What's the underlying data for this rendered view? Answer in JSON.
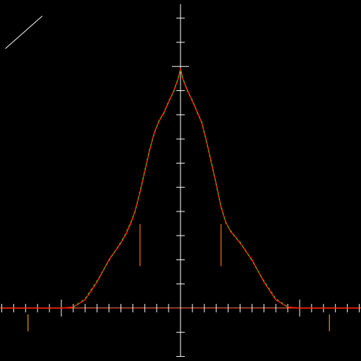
{
  "chart_data": {
    "type": "line",
    "title": "",
    "xlabel": "",
    "ylabel": "",
    "grid": false,
    "xlim": [
      -15,
      15
    ],
    "ylim": [
      -4,
      25
    ],
    "background": "#000000",
    "colors": {
      "axis": "#ffffff",
      "baseline": "#cc2200",
      "main_curve": "#ff1a00",
      "overlay_curve": "#22cc00",
      "marker": "#dd6600",
      "marker_alt": "#cc8800"
    },
    "series": [
      {
        "x": [
          -15,
          -10,
          -9,
          -8,
          -7,
          -6,
          -5,
          -4.6,
          -4.2,
          -3.8,
          -3.4,
          -3,
          -2.6,
          -2.2,
          -1.8,
          -1.4,
          -1,
          -0.6,
          -0.2,
          0,
          0.2,
          0.6,
          1,
          1.4,
          1.8,
          2.2,
          2.6,
          3,
          3.4,
          3.8,
          4.2,
          4.6,
          5,
          6,
          7,
          8,
          9,
          10,
          15
        ],
        "y": [
          0,
          0,
          0.1,
          0.8,
          2.5,
          4.6,
          6.2,
          7.0,
          8.0,
          9.3,
          11.0,
          13.0,
          15.0,
          16.7,
          17.8,
          18.6,
          19.6,
          20.6,
          21.8,
          22.8,
          21.8,
          20.7,
          19.7,
          18.7,
          17.6,
          15.8,
          13.8,
          11.8,
          9.6,
          8.2,
          7.3,
          6.8,
          6.2,
          4.6,
          2.5,
          0.8,
          0.1,
          0,
          0
        ]
      },
      {
        "x": [
          -9,
          -8,
          -7,
          -6,
          -5,
          -4.6,
          -4.2,
          -3.8,
          -3.4,
          -3,
          -2.6,
          -2.2,
          -1.8,
          -1.4,
          -1,
          -0.6,
          -0.2,
          0,
          0.2,
          0.6,
          1,
          1.4,
          1.8,
          2.2,
          2.6,
          3,
          3.4,
          3.8,
          4.2,
          4.6,
          5,
          6,
          7,
          8,
          9
        ],
        "y": [
          0.1,
          0.9,
          2.6,
          4.5,
          6.3,
          7.1,
          8.1,
          9.2,
          11.1,
          13.1,
          15.1,
          16.6,
          17.9,
          18.5,
          19.7,
          20.5,
          21.9,
          22.7,
          21.9,
          20.6,
          19.8,
          18.6,
          17.7,
          15.7,
          13.9,
          11.7,
          9.7,
          8.1,
          7.4,
          6.7,
          6.3,
          4.5,
          2.6,
          0.9,
          0.1
        ]
      }
    ],
    "markers": [
      {
        "x": -3.4,
        "y_from": 4,
        "y_to": 8
      },
      {
        "x": 3.4,
        "y_from": 4,
        "y_to": 8
      },
      {
        "x": -12.8,
        "y_from": -2.2,
        "y_to": -0.6
      },
      {
        "x": 12.5,
        "y_from": -2.2,
        "y_to": -0.6
      }
    ],
    "diagonal_segment": {
      "x1": -14.7,
      "y1": 24.7,
      "x2": -11.6,
      "y2": 27.8
    }
  }
}
